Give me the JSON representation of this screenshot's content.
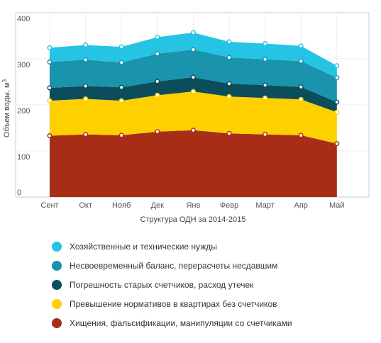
{
  "chart_data": {
    "type": "area",
    "stacked": true,
    "categories": [
      "Сент",
      "Окт",
      "Нояб",
      "Дек",
      "Янв",
      "Февр",
      "Март",
      "Апр",
      "Май"
    ],
    "xlabel": "Структура ОДН за 2014-2015",
    "ylabel_main": "Объем воды, м",
    "ylabel_sup": "3",
    "ylim": [
      0,
      400
    ],
    "yticks": [
      "0",
      "100",
      "200",
      "300",
      "400"
    ],
    "grid": true,
    "legend_position": "bottom-left",
    "series": [
      {
        "name": "Хищения, фальсификации, манипуляции со счетчиками",
        "color": "#a82d16",
        "values": [
          133,
          136,
          134,
          142,
          145,
          138,
          136,
          134,
          116
        ]
      },
      {
        "name": "Превышение нормативов в квартирах без счетчиков",
        "color": "#ffd000",
        "values": [
          76,
          77,
          75,
          79,
          84,
          80,
          79,
          78,
          68
        ]
      },
      {
        "name": "Погрешность старых счетчиков, расход утечек",
        "color": "#0c4d5c",
        "values": [
          28,
          28,
          29,
          30,
          31,
          28,
          28,
          27,
          22
        ]
      },
      {
        "name": "Несвоевременный баланс, перерасчеты несдавшим",
        "color": "#1a93ac",
        "values": [
          56,
          57,
          54,
          60,
          60,
          57,
          56,
          56,
          53
        ]
      },
      {
        "name": "Хозяйственные и технические нужды",
        "color": "#25c3e4",
        "values": [
          31,
          32,
          34,
          36,
          37,
          34,
          34,
          33,
          26
        ]
      }
    ],
    "legend_order": [
      4,
      3,
      2,
      1,
      0
    ]
  }
}
